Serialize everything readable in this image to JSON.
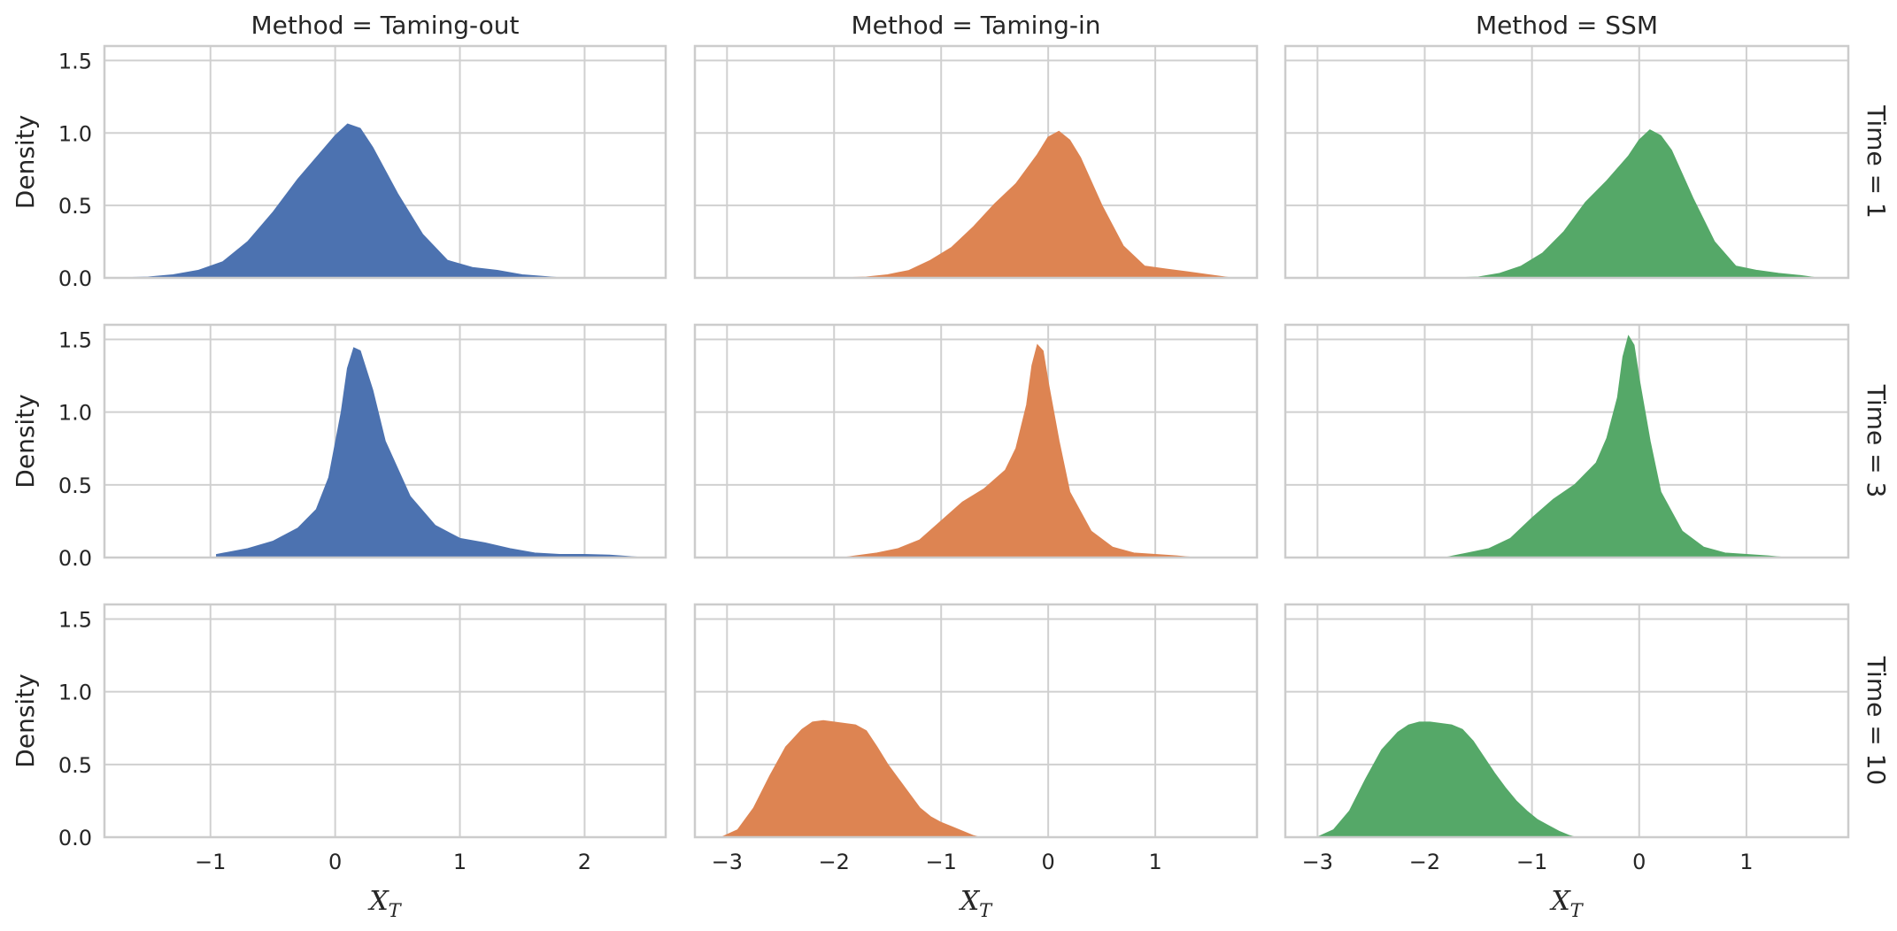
{
  "chart_data": {
    "type": "area",
    "subtype": "kde-density-facet-grid",
    "ylabel": "Density",
    "xlabel": "X",
    "xlabel_sub": "T",
    "ylim": [
      0,
      1.6
    ],
    "yticks": [
      0.0,
      0.5,
      1.0,
      1.5
    ],
    "ytick_labels": [
      "0.0",
      "0.5",
      "1.0",
      "1.5"
    ],
    "grid": true,
    "colors": {
      "Taming-out": "#4c72b0",
      "Taming-in": "#dd8452",
      "SSM": "#55a868",
      "grid": "#d0d0d0",
      "spine": "#cccccc"
    },
    "columns": [
      {
        "key": "Taming-out",
        "title": "Method = Taming-out",
        "xlim": [
          -1.85,
          2.65
        ],
        "xticks": [
          -1,
          0,
          1,
          2
        ],
        "xtick_labels": [
          "−1",
          "0",
          "1",
          "2"
        ]
      },
      {
        "key": "Taming-in",
        "title": "Method = Taming-in",
        "xlim": [
          -3.3,
          1.95
        ],
        "xticks": [
          -3,
          -2,
          -1,
          0,
          1
        ],
        "xtick_labels": [
          "−3",
          "−2",
          "−1",
          "0",
          "1"
        ]
      },
      {
        "key": "SSM",
        "title": "Method = SSM",
        "xlim": [
          -3.3,
          1.95
        ],
        "xticks": [
          -3,
          -2,
          -1,
          0,
          1
        ],
        "xtick_labels": [
          "−3",
          "−2",
          "−1",
          "0",
          "1"
        ]
      }
    ],
    "rows": [
      {
        "key": "1",
        "label": "Time = 1"
      },
      {
        "key": "3",
        "label": "Time = 3"
      },
      {
        "key": "10",
        "label": "Time = 10"
      }
    ],
    "panels": [
      {
        "row": 0,
        "col": 0,
        "series": "Taming-out",
        "x": [
          -1.7,
          -1.5,
          -1.3,
          -1.1,
          -0.9,
          -0.7,
          -0.5,
          -0.3,
          -0.1,
          0.0,
          0.1,
          0.2,
          0.3,
          0.5,
          0.7,
          0.9,
          1.1,
          1.3,
          1.5,
          1.8
        ],
        "y": [
          0.0,
          0.005,
          0.02,
          0.05,
          0.11,
          0.25,
          0.45,
          0.68,
          0.88,
          0.98,
          1.06,
          1.03,
          0.9,
          0.58,
          0.3,
          0.12,
          0.07,
          0.05,
          0.02,
          0.0
        ]
      },
      {
        "row": 0,
        "col": 1,
        "series": "Taming-in",
        "x": [
          -1.9,
          -1.7,
          -1.5,
          -1.3,
          -1.1,
          -0.9,
          -0.7,
          -0.5,
          -0.3,
          -0.1,
          0.0,
          0.1,
          0.2,
          0.3,
          0.5,
          0.7,
          0.9,
          1.1,
          1.3,
          1.5,
          1.7
        ],
        "y": [
          0.0,
          0.005,
          0.02,
          0.05,
          0.12,
          0.21,
          0.35,
          0.51,
          0.65,
          0.85,
          0.97,
          1.01,
          0.95,
          0.83,
          0.5,
          0.22,
          0.08,
          0.06,
          0.04,
          0.02,
          0.0
        ]
      },
      {
        "row": 0,
        "col": 2,
        "series": "SSM",
        "x": [
          -1.7,
          -1.5,
          -1.3,
          -1.1,
          -0.9,
          -0.7,
          -0.5,
          -0.3,
          -0.1,
          0.0,
          0.1,
          0.2,
          0.3,
          0.5,
          0.7,
          0.9,
          1.1,
          1.3,
          1.5,
          1.65
        ],
        "y": [
          0.0,
          0.005,
          0.03,
          0.08,
          0.17,
          0.32,
          0.52,
          0.67,
          0.84,
          0.95,
          1.02,
          0.98,
          0.88,
          0.55,
          0.25,
          0.08,
          0.05,
          0.03,
          0.015,
          0.0
        ]
      },
      {
        "row": 1,
        "col": 0,
        "series": "Taming-out",
        "x": [
          -0.95,
          -0.7,
          -0.5,
          -0.3,
          -0.15,
          -0.05,
          0.05,
          0.1,
          0.15,
          0.2,
          0.3,
          0.4,
          0.6,
          0.8,
          1.0,
          1.2,
          1.4,
          1.6,
          1.8,
          2.0,
          2.2,
          2.45
        ],
        "y": [
          0.02,
          0.06,
          0.11,
          0.2,
          0.33,
          0.55,
          1.0,
          1.3,
          1.44,
          1.42,
          1.15,
          0.8,
          0.42,
          0.22,
          0.13,
          0.1,
          0.06,
          0.03,
          0.02,
          0.02,
          0.015,
          0.0
        ]
      },
      {
        "row": 1,
        "col": 1,
        "series": "Taming-in",
        "x": [
          -1.9,
          -1.6,
          -1.4,
          -1.2,
          -1.0,
          -0.8,
          -0.6,
          -0.4,
          -0.3,
          -0.2,
          -0.15,
          -0.1,
          -0.05,
          0.0,
          0.1,
          0.2,
          0.4,
          0.6,
          0.8,
          1.0,
          1.2,
          1.35
        ],
        "y": [
          0.0,
          0.03,
          0.06,
          0.12,
          0.25,
          0.38,
          0.47,
          0.6,
          0.75,
          1.05,
          1.32,
          1.46,
          1.42,
          1.2,
          0.8,
          0.45,
          0.18,
          0.07,
          0.03,
          0.02,
          0.01,
          0.0
        ]
      },
      {
        "row": 1,
        "col": 2,
        "series": "SSM",
        "x": [
          -1.8,
          -1.6,
          -1.4,
          -1.2,
          -1.0,
          -0.8,
          -0.6,
          -0.4,
          -0.3,
          -0.2,
          -0.15,
          -0.1,
          -0.05,
          0.0,
          0.1,
          0.2,
          0.4,
          0.6,
          0.8,
          1.0,
          1.2,
          1.35
        ],
        "y": [
          0.0,
          0.03,
          0.06,
          0.13,
          0.27,
          0.4,
          0.5,
          0.65,
          0.82,
          1.1,
          1.38,
          1.52,
          1.46,
          1.22,
          0.8,
          0.45,
          0.18,
          0.07,
          0.03,
          0.02,
          0.01,
          0.0
        ]
      },
      {
        "row": 2,
        "col": 0,
        "series": "Taming-out",
        "x": [],
        "y": []
      },
      {
        "row": 2,
        "col": 1,
        "series": "Taming-in",
        "x": [
          -3.05,
          -2.9,
          -2.75,
          -2.6,
          -2.45,
          -2.3,
          -2.2,
          -2.1,
          -2.0,
          -1.9,
          -1.8,
          -1.7,
          -1.6,
          -1.5,
          -1.4,
          -1.3,
          -1.2,
          -1.1,
          -1.0,
          -0.9,
          -0.8,
          -0.7,
          -0.65
        ],
        "y": [
          0.0,
          0.05,
          0.2,
          0.42,
          0.62,
          0.74,
          0.79,
          0.8,
          0.79,
          0.78,
          0.77,
          0.73,
          0.62,
          0.5,
          0.4,
          0.3,
          0.2,
          0.14,
          0.1,
          0.07,
          0.04,
          0.01,
          0.0
        ]
      },
      {
        "row": 2,
        "col": 2,
        "series": "SSM",
        "x": [
          -3.0,
          -2.85,
          -2.7,
          -2.55,
          -2.4,
          -2.25,
          -2.15,
          -2.05,
          -1.95,
          -1.85,
          -1.75,
          -1.65,
          -1.55,
          -1.45,
          -1.35,
          -1.25,
          -1.15,
          -1.05,
          -0.95,
          -0.85,
          -0.75,
          -0.65,
          -0.6
        ],
        "y": [
          0.0,
          0.05,
          0.18,
          0.4,
          0.6,
          0.72,
          0.77,
          0.79,
          0.79,
          0.78,
          0.77,
          0.74,
          0.66,
          0.55,
          0.44,
          0.34,
          0.25,
          0.18,
          0.12,
          0.08,
          0.04,
          0.01,
          0.0
        ]
      }
    ]
  }
}
